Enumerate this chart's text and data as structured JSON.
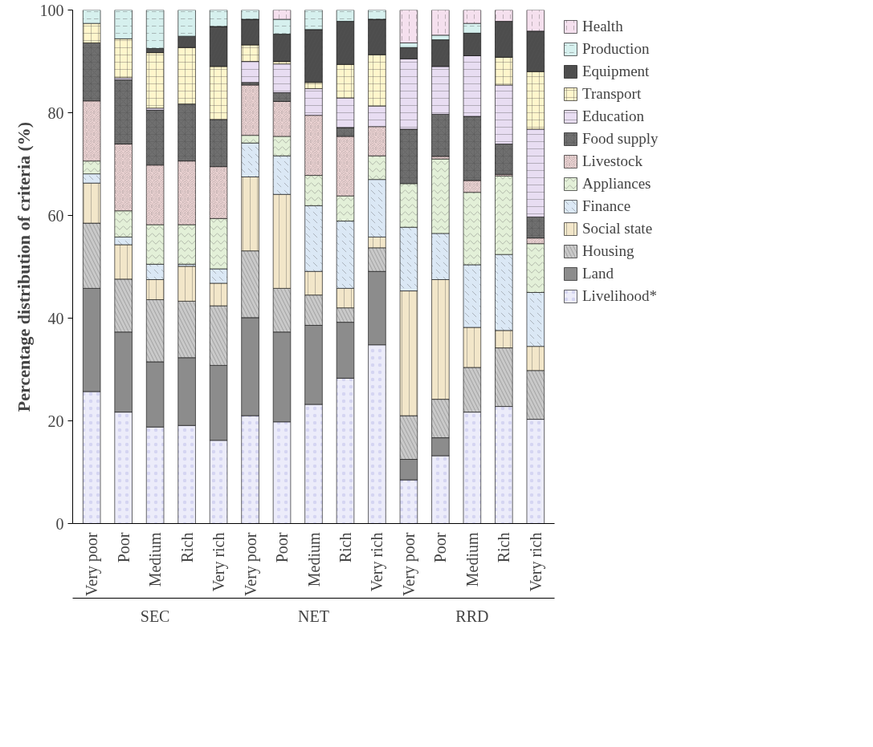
{
  "chart_data": {
    "type": "bar",
    "stacked": true,
    "ylabel": "Percentage distribution of criteria (%)",
    "categories": [
      "Very poor",
      "Poor",
      "Medium",
      "Rich",
      "Very rich",
      "Very poor",
      "Poor",
      "Medium",
      "Rich",
      "Very rich",
      "Very poor",
      "Poor",
      "Medium",
      "Rich",
      "Very rich"
    ],
    "annotations": [
      "SEC",
      "NET",
      "RRD"
    ],
    "ylim": [
      0,
      100
    ],
    "yticks": [
      0,
      20,
      40,
      60,
      80,
      100
    ],
    "grid": false,
    "legend": "right",
    "series": [
      {
        "name": "Livelihood*",
        "color": "#ececfa",
        "values": [
          25.7,
          21.7,
          18.8,
          19.1,
          16.2,
          21.0,
          19.8,
          23.2,
          28.3,
          34.8,
          8.5,
          13.2,
          21.7,
          22.8,
          20.3
        ]
      },
      {
        "name": "Land",
        "color": "#8c8c8c",
        "values": [
          20.1,
          15.6,
          12.7,
          13.2,
          14.6,
          19.1,
          17.5,
          15.4,
          10.9,
          14.3,
          4.0,
          3.5,
          0,
          0,
          0
        ]
      },
      {
        "name": "Housing",
        "color": "#c9c9c9",
        "values": [
          12.7,
          10.3,
          12.1,
          11.0,
          11.6,
          13.0,
          8.5,
          5.9,
          2.8,
          4.6,
          8.5,
          7.5,
          8.7,
          11.4,
          9.5
        ]
      },
      {
        "name": "Social state",
        "color": "#f2e6c9",
        "values": [
          7.8,
          6.7,
          3.9,
          6.8,
          4.4,
          14.4,
          18.3,
          4.6,
          3.8,
          2.1,
          24.3,
          23.3,
          7.8,
          3.4,
          4.7
        ]
      },
      {
        "name": "Finance",
        "color": "#dbe8f5",
        "values": [
          1.8,
          1.5,
          3.0,
          0.4,
          2.8,
          6.6,
          7.5,
          12.8,
          13.1,
          11.2,
          12.4,
          9.0,
          12.2,
          14.8,
          10.5
        ]
      },
      {
        "name": "Appliances",
        "color": "#e3f0d8",
        "values": [
          2.5,
          5.1,
          7.7,
          7.7,
          9.8,
          1.5,
          3.8,
          5.9,
          4.9,
          4.6,
          8.5,
          14.5,
          14.1,
          15.3,
          9.5
        ]
      },
      {
        "name": "Livestock",
        "color": "#f7dcdc",
        "values": [
          11.7,
          13.0,
          11.6,
          12.4,
          10.1,
          9.8,
          6.8,
          11.7,
          11.6,
          5.7,
          0,
          0.5,
          2.3,
          0.3,
          1.1
        ]
      },
      {
        "name": "Food supply",
        "color": "#6f6f6f",
        "values": [
          11.3,
          12.5,
          10.7,
          11.1,
          9.2,
          0.5,
          1.7,
          0,
          1.7,
          0,
          10.6,
          8.2,
          12.5,
          5.9,
          4.1
        ]
      },
      {
        "name": "Education",
        "color": "#e8ddf2",
        "values": [
          0,
          0.4,
          0.4,
          0,
          0,
          4.1,
          5.6,
          5.2,
          5.8,
          4.0,
          13.7,
          9.3,
          11.8,
          11.5,
          17.1
        ]
      },
      {
        "name": "Transport",
        "color": "#fff6cc",
        "values": [
          3.8,
          7.6,
          10.8,
          11.0,
          10.3,
          3.2,
          0.5,
          1.2,
          6.5,
          10.0,
          0,
          0,
          0,
          5.4,
          11.2
        ]
      },
      {
        "name": "Equipment",
        "color": "#4d4d4d",
        "values": [
          0,
          0,
          0.8,
          2.2,
          7.8,
          5.0,
          5.3,
          10.3,
          8.4,
          6.9,
          2.2,
          5.2,
          4.4,
          7.0,
          7.9
        ]
      },
      {
        "name": "Production",
        "color": "#d6f0ee",
        "values": [
          2.6,
          5.6,
          7.5,
          5.1,
          3.2,
          1.8,
          2.9,
          3.8,
          2.2,
          1.8,
          0.9,
          0.9,
          1.9,
          0,
          0
        ]
      },
      {
        "name": "Health",
        "color": "#f5e0ee",
        "values": [
          0,
          0,
          0,
          0,
          0,
          0,
          1.8,
          0,
          0,
          0,
          6.4,
          4.9,
          2.6,
          2.2,
          4.1
        ]
      }
    ]
  }
}
